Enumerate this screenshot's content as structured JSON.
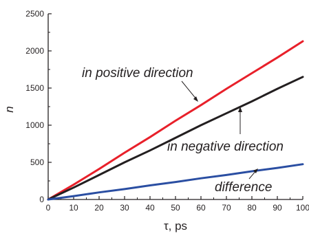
{
  "chart_data": {
    "type": "line",
    "title": "",
    "xlabel": "τ, ps",
    "ylabel": "n",
    "xlim": [
      0,
      100
    ],
    "ylim": [
      0,
      2500
    ],
    "x_ticks": [
      0,
      10,
      20,
      30,
      40,
      50,
      60,
      70,
      80,
      90,
      100
    ],
    "y_ticks": [
      0,
      500,
      1000,
      1500,
      2000,
      2500
    ],
    "grid": false,
    "legend": "none",
    "x": [
      0,
      10,
      20,
      30,
      40,
      50,
      60,
      70,
      80,
      90,
      100
    ],
    "series": [
      {
        "name": "in positive direction",
        "color": "#e8202a",
        "values": [
          0,
          200,
          410,
          630,
          840,
          1060,
          1270,
          1490,
          1700,
          1910,
          2130
        ]
      },
      {
        "name": "in negative direction",
        "color": "#231f20",
        "values": [
          0,
          160,
          330,
          500,
          660,
          830,
          1000,
          1160,
          1320,
          1490,
          1650
        ]
      },
      {
        "name": "difference",
        "color": "#2a4ea2",
        "values": [
          0,
          45,
          95,
          140,
          190,
          235,
          285,
          330,
          380,
          425,
          475
        ]
      }
    ],
    "annotations": [
      {
        "text": "in positive direction",
        "target": [
          60,
          1290
        ]
      },
      {
        "text": "in negative direction",
        "target": [
          77,
          1170
        ]
      },
      {
        "text": "difference",
        "target": [
          82,
          400
        ]
      }
    ]
  }
}
